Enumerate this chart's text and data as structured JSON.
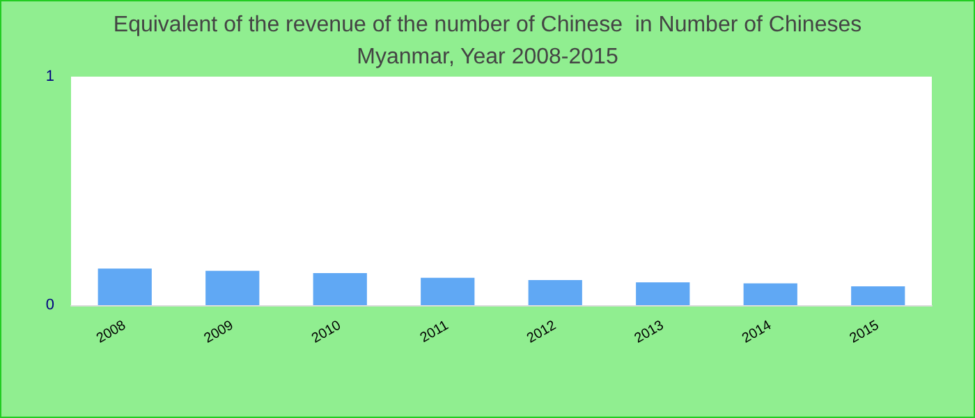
{
  "chart_data": {
    "type": "bar",
    "title": "Equivalent of the revenue of the number of Chinese  in Number of Chineses",
    "subtitle": "Myanmar, Year 2008-2015",
    "categories": [
      "2008",
      "2009",
      "2010",
      "2011",
      "2012",
      "2013",
      "2014",
      "2015"
    ],
    "values": [
      0.16,
      0.15,
      0.14,
      0.12,
      0.11,
      0.1,
      0.095,
      0.082
    ],
    "color": "#60a8f4",
    "ylim": [
      0,
      1
    ],
    "yticks": [
      0,
      1
    ],
    "grid": false
  }
}
